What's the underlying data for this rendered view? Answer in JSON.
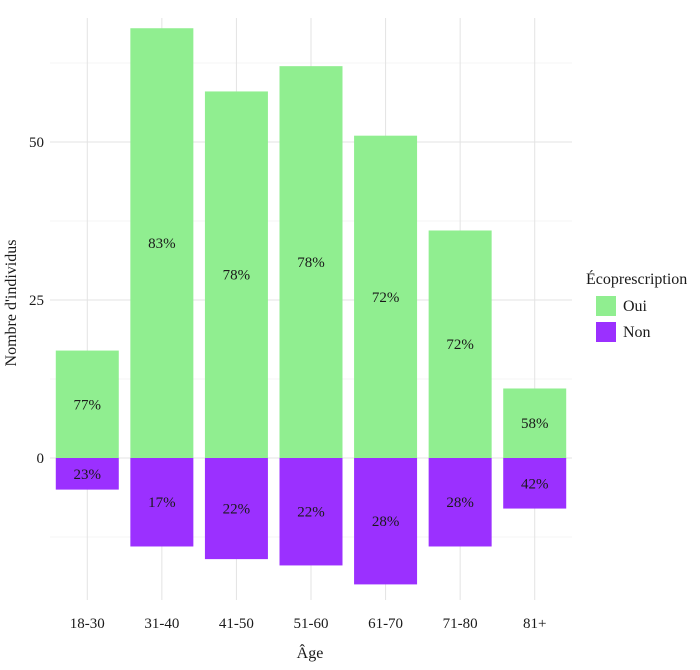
{
  "chart_data": {
    "type": "bar",
    "stacked": "diverging",
    "categories": [
      "18-30",
      "31-40",
      "41-50",
      "51-60",
      "61-70",
      "71-80",
      "81+"
    ],
    "series": [
      {
        "name": "Oui",
        "color": "#90ee90",
        "values": [
          17,
          68,
          58,
          62,
          51,
          36,
          11
        ],
        "labels": [
          "77%",
          "83%",
          "78%",
          "78%",
          "72%",
          "72%",
          "58%"
        ]
      },
      {
        "name": "Non",
        "color": "#9b30ff",
        "values": [
          -5,
          -14,
          -16,
          -17,
          -20,
          -14,
          -8
        ],
        "labels": [
          "23%",
          "17%",
          "22%",
          "22%",
          "28%",
          "28%",
          "42%"
        ]
      }
    ],
    "xlabel": "Âge",
    "ylabel": "Nombre d'individus",
    "ylim": [
      -24,
      72
    ],
    "yticks": [
      0,
      25,
      50
    ],
    "grid": true,
    "legend": {
      "title": "Écoprescription",
      "position": "right"
    }
  }
}
